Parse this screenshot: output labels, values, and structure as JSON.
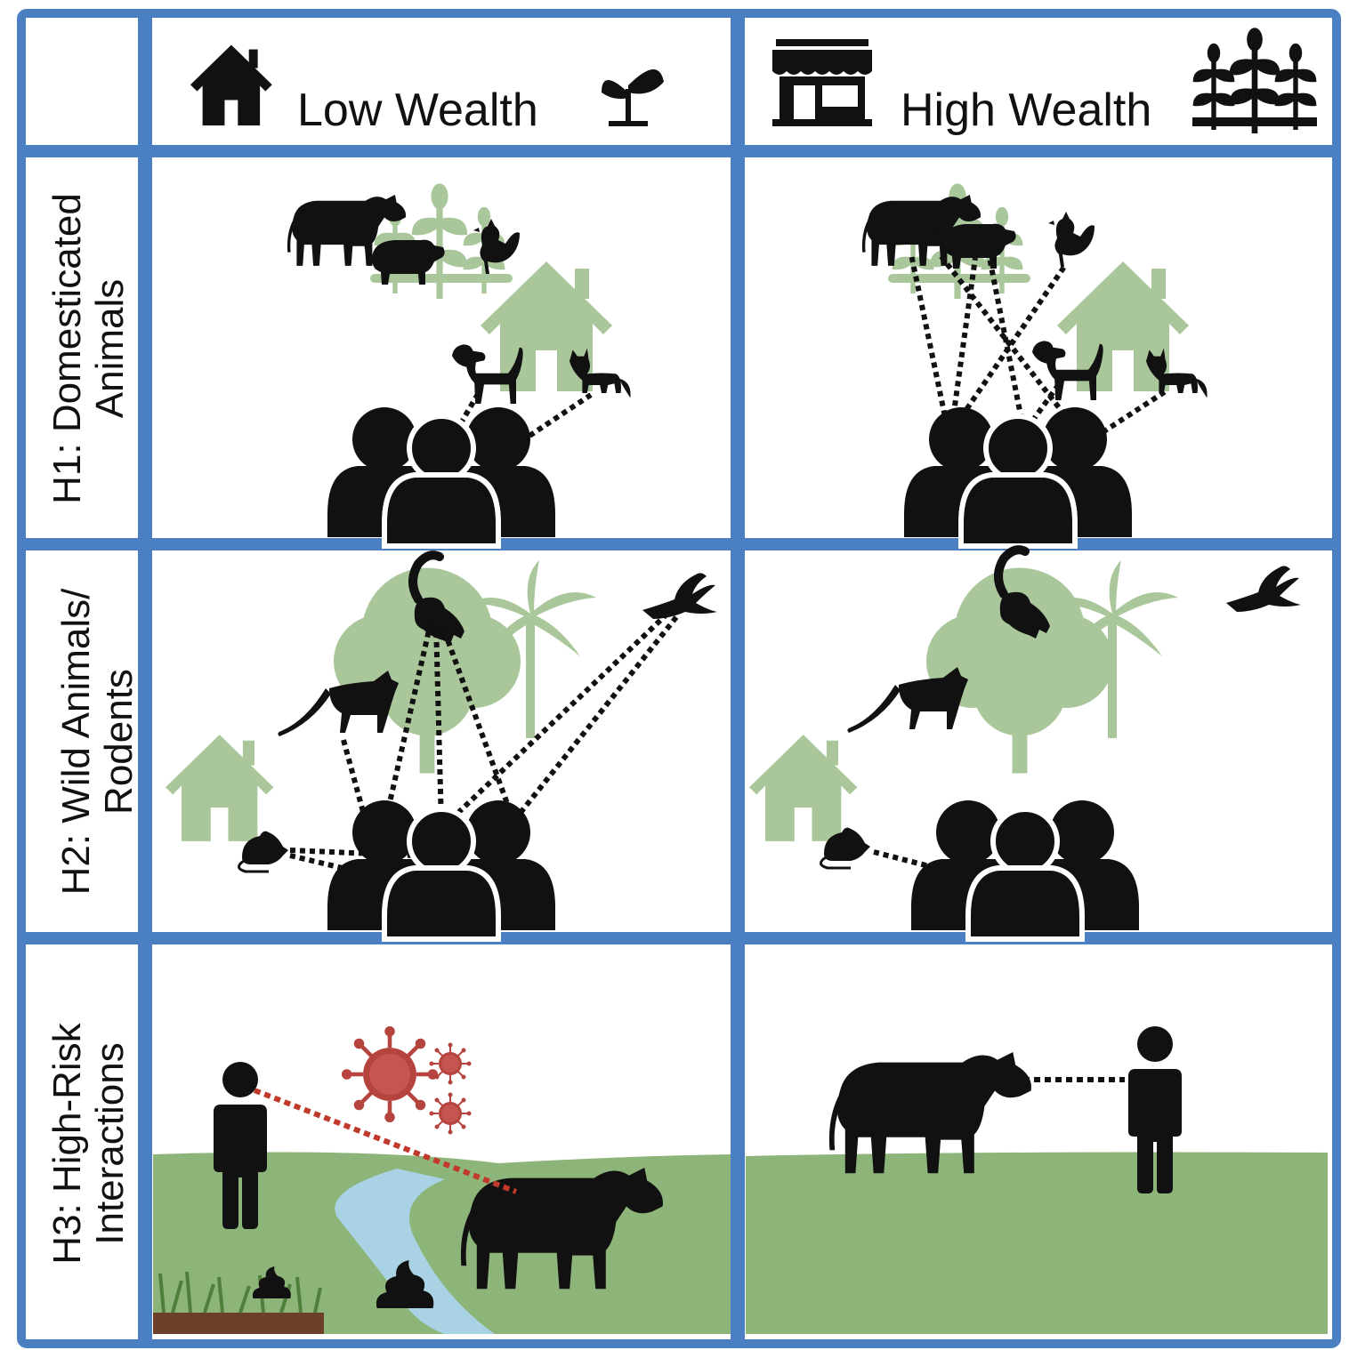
{
  "columns": [
    {
      "label": "Low Wealth",
      "left_icon": "house-icon",
      "right_icon": "sprout-icon"
    },
    {
      "label": "High Wealth",
      "left_icon": "shop-icon",
      "right_icon": "crops-icon"
    }
  ],
  "rows": [
    {
      "line1": "H1: Domesticated",
      "line2": "Animals"
    },
    {
      "line1": "H2: Wild Animals/",
      "line2": "Rodents"
    },
    {
      "line1": "H3: High-Risk",
      "line2": "Interactions"
    }
  ],
  "colors": {
    "grid_border": "#4a7fc1",
    "silhouette": "#111111",
    "background_green": "#a9c79a",
    "grass_green": "#8db57a",
    "river_blue": "#a9d3e4",
    "virus_red": "#b5443f",
    "risk_line": "#c0392b"
  }
}
